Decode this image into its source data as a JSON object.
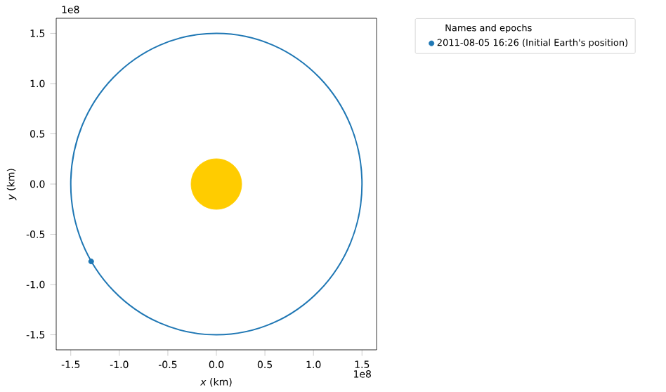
{
  "chart_data": {
    "type": "scatter",
    "xlabel": "*x* (km)",
    "ylabel": "*y* (km)",
    "legend_title": "Names and epochs",
    "legend": "right",
    "xlim": [
      -1.65,
      1.65
    ],
    "ylim": [
      -1.65,
      1.65
    ],
    "xticks": [
      -1.5,
      {
        "value": -1.0,
        "label": "-1.0"
      },
      -0.5,
      {
        "value": 0,
        "label": "0.0"
      },
      0.5,
      {
        "value": 1.0,
        "label": "1.0"
      },
      1.5
    ],
    "yticks": [
      -1.5,
      {
        "value": -1.0,
        "label": "-1.0"
      },
      -0.5,
      {
        "value": 0,
        "label": "0.0"
      },
      0.5,
      {
        "value": 1.0,
        "label": "1.0"
      },
      1.5
    ],
    "annotations": [
      "1e8",
      "1e8"
    ],
    "series": [
      {
        "type": "bubble",
        "color": "#ffcc00",
        "x": [
          0
        ],
        "values": [
          0
        ],
        "sizes": [
          1
        ]
      },
      {
        "color": "#1f77b4",
        "marker": "circle",
        "name": "2011-08-05 16:26 (Initial Earth's position)",
        "x": [
          -1.29
        ],
        "values": [
          -0.77
        ]
      }
    ]
  }
}
